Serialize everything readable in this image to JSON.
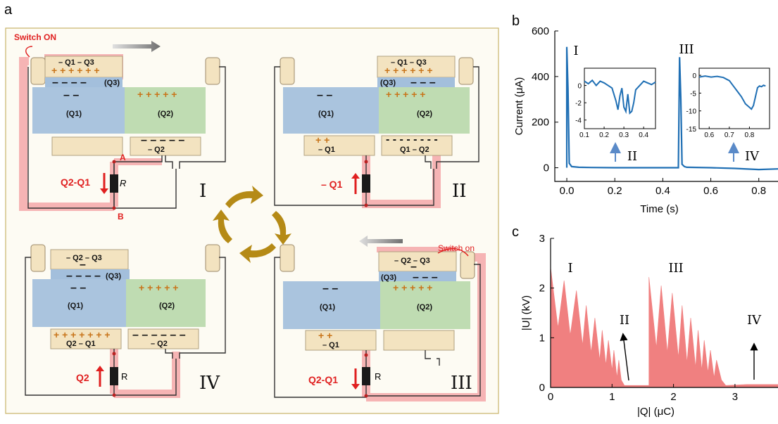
{
  "panel_labels": {
    "a": "a",
    "b": "b",
    "c": "c"
  },
  "schematic": {
    "state_numerals": [
      "I",
      "II",
      "III",
      "IV"
    ],
    "switch_on_I": "Switch ON",
    "switch_on_III": "Switch on",
    "node_a": "A",
    "node_b": "B",
    "resistor_italic": "R",
    "resistor_plain": "R",
    "state_I": {
      "top": "– Q1 – Q3",
      "q3": "(Q3)",
      "q1": "(Q1)",
      "q2": "(Q2)",
      "bottom_right": "– Q2",
      "current": "Q2-Q1"
    },
    "state_II": {
      "top": "– Q1 – Q3",
      "q3": "(Q3)",
      "q1": "(Q1)",
      "q2": "(Q2)",
      "bottom_left": "– Q1",
      "bottom_right": "Q1 – Q2",
      "current": "– Q1"
    },
    "state_III": {
      "top": "– Q2 – Q3",
      "q3": "(Q3)",
      "q1": "(Q1)",
      "q2": "(Q2)",
      "bottom_left": "– Q1",
      "current": "Q2-Q1"
    },
    "state_IV": {
      "top": "– Q2 – Q3",
      "q3": "(Q3)",
      "q1": "(Q1)",
      "q2": "(Q2)",
      "bottom_left": "Q2 – Q1",
      "bottom_right": "– Q2",
      "current": "Q2"
    },
    "colors": {
      "frame_border": "#c8b46a",
      "frame_fill": "#fdfbf3",
      "electrode": "#f3e3c0",
      "dielectric_blue": "#aac4de",
      "dielectric_green": "#bfdcb2",
      "q3_layer": "#a3bfdc",
      "highlight": "#f6b4b4",
      "red": "#e02020",
      "gold_arrow": "#b58a16"
    }
  },
  "chart_data": [
    {
      "type": "line",
      "panel": "b",
      "xlabel": "Time (s)",
      "ylabel": "Current (μA)",
      "xlim": [
        -0.05,
        0.88
      ],
      "ylim": [
        -60,
        600
      ],
      "xticks": [
        "0.0",
        "0.2",
        "0.4",
        "0.6",
        "0.8"
      ],
      "yticks": [
        "0",
        "200",
        "400",
        "600"
      ],
      "color": "#1f6fb4",
      "annotations": [
        "I",
        "III",
        "II",
        "IV"
      ],
      "x": [
        0.0,
        0.0,
        0.005,
        0.01,
        0.02,
        0.05,
        0.1,
        0.2,
        0.3,
        0.4,
        0.46,
        0.465,
        0.47,
        0.475,
        0.48,
        0.49,
        0.5,
        0.6,
        0.7,
        0.8,
        0.88
      ],
      "y": [
        0,
        530,
        350,
        20,
        5,
        2,
        1,
        0,
        0,
        0,
        0,
        0,
        485,
        300,
        15,
        5,
        2,
        0,
        -3,
        -8,
        -5
      ],
      "insets": [
        {
          "xlim": [
            0.1,
            0.46
          ],
          "ylim": [
            -5,
            2
          ],
          "xticks": [
            "0.1",
            "0.2",
            "0.3",
            "0.4"
          ],
          "yticks": [
            "0",
            "-2",
            "-4"
          ],
          "x": [
            0.1,
            0.12,
            0.14,
            0.16,
            0.18,
            0.2,
            0.22,
            0.24,
            0.26,
            0.27,
            0.28,
            0.29,
            0.3,
            0.31,
            0.32,
            0.33,
            0.34,
            0.35,
            0.36,
            0.38,
            0.4,
            0.42,
            0.44,
            0.46
          ],
          "y": [
            0.5,
            0.2,
            0.6,
            0.0,
            0.5,
            0.3,
            0.0,
            -0.3,
            -1.8,
            -2.8,
            -1.2,
            -0.3,
            -2.5,
            -3.0,
            -1.0,
            -3.2,
            -3.0,
            -2.0,
            -0.5,
            0.0,
            0.5,
            0.3,
            0.1,
            0.4
          ]
        },
        {
          "xlim": [
            0.55,
            0.9
          ],
          "ylim": [
            -15,
            2
          ],
          "xticks": [
            "0.6",
            "0.7",
            "0.8"
          ],
          "yticks": [
            "0",
            "-5",
            "-10",
            "-15"
          ],
          "x": [
            0.55,
            0.58,
            0.61,
            0.64,
            0.67,
            0.7,
            0.72,
            0.74,
            0.76,
            0.78,
            0.8,
            0.81,
            0.82,
            0.83,
            0.84,
            0.85,
            0.86,
            0.87,
            0.88
          ],
          "y": [
            -0.5,
            -0.2,
            -0.5,
            -0.3,
            -0.6,
            -1.5,
            -3.0,
            -4.5,
            -6.0,
            -8.0,
            -9.0,
            -9.5,
            -8.5,
            -6.0,
            -3.5,
            -3.0,
            -3.2,
            -2.8,
            -3.0
          ]
        }
      ]
    },
    {
      "type": "area",
      "panel": "c",
      "xlabel": "|Q| (μC)",
      "ylabel": "|U| (kV)",
      "xlim": [
        0,
        3.7
      ],
      "ylim": [
        0,
        3
      ],
      "xticks": [
        "0",
        "1",
        "2",
        "3"
      ],
      "yticks": [
        "0",
        "1",
        "2",
        "3"
      ],
      "color": "#f08080",
      "annotations": [
        "I",
        "II",
        "III",
        "IV"
      ],
      "x": [
        0.0,
        0.0,
        0.12,
        0.22,
        0.22,
        0.32,
        0.42,
        0.42,
        0.52,
        0.58,
        0.58,
        0.66,
        0.72,
        0.72,
        0.8,
        0.84,
        0.84,
        0.9,
        0.94,
        0.94,
        1.0,
        1.03,
        1.03,
        1.08,
        1.11,
        1.15,
        1.2,
        1.5,
        1.6,
        1.6,
        1.72,
        1.8,
        1.8,
        1.9,
        1.98,
        1.98,
        2.08,
        2.14,
        2.14,
        2.22,
        2.28,
        2.28,
        2.36,
        2.4,
        2.4,
        2.46,
        2.5,
        2.5,
        2.56,
        2.6,
        2.6,
        2.66,
        2.7,
        2.78,
        2.85,
        3.2,
        3.7
      ],
      "y": [
        0.0,
        2.42,
        1.2,
        2.15,
        2.15,
        1.05,
        1.95,
        1.95,
        0.85,
        1.65,
        1.65,
        0.7,
        1.4,
        1.4,
        0.55,
        1.15,
        1.15,
        0.45,
        0.95,
        0.95,
        0.35,
        0.75,
        0.75,
        0.2,
        0.55,
        0.15,
        0.04,
        0.04,
        0.04,
        2.22,
        0.8,
        2.05,
        2.05,
        0.7,
        1.9,
        1.9,
        0.6,
        1.65,
        1.65,
        0.5,
        1.4,
        1.4,
        0.4,
        1.15,
        1.15,
        0.35,
        0.95,
        0.95,
        0.3,
        0.75,
        0.75,
        0.2,
        0.55,
        0.15,
        0.04,
        0.06,
        0.06
      ]
    }
  ]
}
